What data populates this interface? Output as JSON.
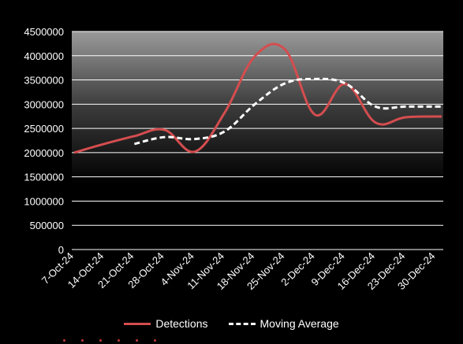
{
  "chart_data": {
    "type": "line",
    "title": "",
    "xlabel": "",
    "ylabel": "",
    "ylim": [
      0,
      4500000
    ],
    "yticks": [
      0,
      500000,
      1000000,
      1500000,
      2000000,
      2500000,
      3000000,
      3500000,
      4000000,
      4500000
    ],
    "ytick_labels": [
      "0",
      "500000",
      "1000000",
      "1500000",
      "2000000",
      "2500000",
      "3000000",
      "3500000",
      "4000000",
      "4500000"
    ],
    "categories": [
      "7-Oct-24",
      "14-Oct-24",
      "21-Oct-24",
      "28-Oct-24",
      "4-Nov-24",
      "11-Nov-24",
      "18-Nov-24",
      "25-Nov-24",
      "2-Dec-24",
      "9-Dec-24",
      "16-Dec-24",
      "23-Dec-24",
      "30-Dec-24"
    ],
    "grid": true,
    "legend_position": "bottom",
    "series": [
      {
        "name": "Detections",
        "color": "#d44d4f",
        "style": "solid",
        "values": [
          2000000,
          2180000,
          2340000,
          2470000,
          2020000,
          2830000,
          3990000,
          4130000,
          2780000,
          3420000,
          2620000,
          2730000,
          null
        ]
      },
      {
        "name": "Moving Average",
        "color": "#ffffff",
        "style": "dashed",
        "values": [
          null,
          null,
          2180000,
          2320000,
          2280000,
          2440000,
          3000000,
          3430000,
          3520000,
          3430000,
          2950000,
          2950000,
          null
        ]
      }
    ]
  },
  "legend": {
    "detections": "Detections",
    "moving_average": "Moving Average"
  }
}
